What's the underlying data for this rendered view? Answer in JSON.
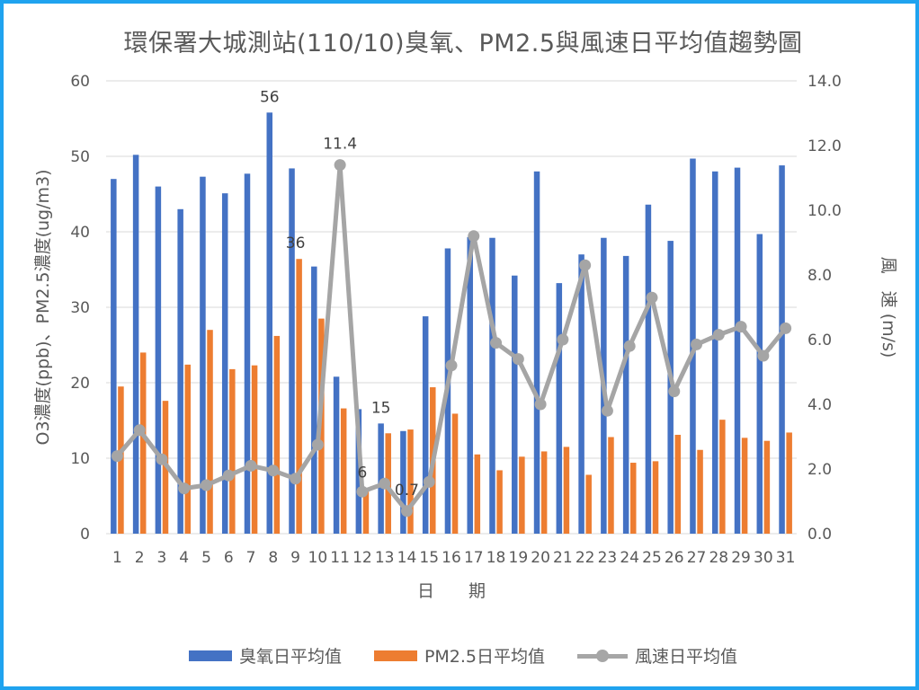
{
  "chart_data": {
    "type": "bar",
    "title": "環保署大城測站(110/10)臭氧、PM2.5與風速日平均值趨勢圖",
    "xlabel": "日　　期",
    "ylabel_left": "O3濃度(ppb)、PM2.5濃度(ug/m3)",
    "ylabel_right": "風　速 (m/s)",
    "ylim_left": [
      0,
      60
    ],
    "ylim_right": [
      0,
      14
    ],
    "yticks_left": [
      "0",
      "10",
      "20",
      "30",
      "40",
      "50",
      "60"
    ],
    "yticks_right": [
      "0.0",
      "2.0",
      "4.0",
      "6.0",
      "8.0",
      "10.0",
      "12.0",
      "14.0"
    ],
    "grid": true,
    "legend_position": "bottom",
    "categories": [
      "1",
      "2",
      "3",
      "4",
      "5",
      "6",
      "7",
      "8",
      "9",
      "10",
      "11",
      "12",
      "13",
      "14",
      "15",
      "16",
      "17",
      "18",
      "19",
      "20",
      "21",
      "22",
      "23",
      "24",
      "25",
      "26",
      "27",
      "28",
      "29",
      "30",
      "31"
    ],
    "series": [
      {
        "name": "臭氧日平均值",
        "type": "bar",
        "axis": "left",
        "color": "#4472c4",
        "values": [
          47.0,
          50.2,
          46.0,
          43.0,
          47.3,
          45.1,
          47.7,
          55.8,
          48.4,
          35.4,
          20.8,
          16.5,
          14.6,
          13.6,
          28.8,
          37.8,
          39.3,
          39.2,
          34.2,
          48.0,
          33.2,
          37.0,
          39.2,
          36.8,
          43.6,
          38.8,
          49.7,
          48.0,
          48.5,
          39.7,
          48.8
        ],
        "labels": {
          "8": "56",
          "13": "15"
        }
      },
      {
        "name": "PM2.5日平均值",
        "type": "bar",
        "axis": "left",
        "color": "#ed7d31",
        "values": [
          19.5,
          24.0,
          17.6,
          22.4,
          27.0,
          21.8,
          22.3,
          26.2,
          36.4,
          28.5,
          16.6,
          6.0,
          13.3,
          13.8,
          19.4,
          15.9,
          10.5,
          8.4,
          10.2,
          10.9,
          11.5,
          7.8,
          12.8,
          9.4,
          9.6,
          13.1,
          11.1,
          15.1,
          12.7,
          12.3,
          13.4
        ],
        "labels": {
          "9": "36",
          "12": "6"
        }
      },
      {
        "name": "風速日平均值",
        "type": "line",
        "axis": "right",
        "color": "#a5a5a5",
        "values": [
          2.4,
          3.2,
          2.3,
          1.4,
          1.5,
          1.8,
          2.1,
          1.95,
          1.7,
          2.75,
          11.4,
          1.3,
          1.55,
          0.7,
          1.6,
          5.2,
          9.2,
          5.9,
          5.4,
          4.0,
          6.0,
          8.3,
          3.8,
          5.8,
          7.3,
          4.4,
          5.85,
          6.15,
          6.4,
          5.5,
          6.35
        ],
        "labels": {
          "11": "11.4",
          "14": "0.7"
        }
      }
    ]
  }
}
